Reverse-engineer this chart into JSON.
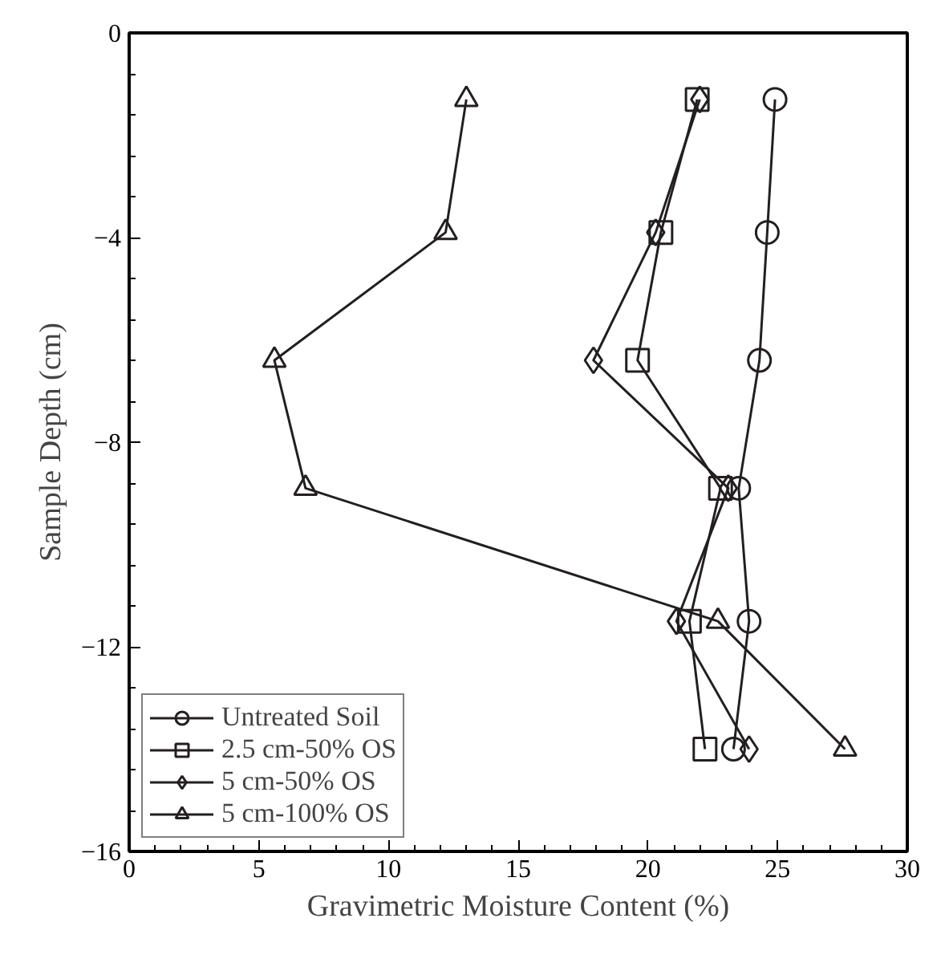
{
  "chart_data": {
    "type": "line",
    "xlabel": "Gravimetric Moisture Content (%)",
    "ylabel": "Sample Depth (cm)",
    "xlim": [
      0,
      30
    ],
    "xticks": [
      0,
      5,
      10,
      15,
      20,
      25,
      30
    ],
    "ylim": [
      -16,
      0
    ],
    "yticks": [
      -16,
      -12,
      -8,
      -4,
      0
    ],
    "grid": false,
    "legend": "bottom left",
    "line_style": "solid",
    "series": [
      {
        "name": "Untreated Soil",
        "color": "#231f20",
        "marker": "circle",
        "x": [
          24.9,
          24.6,
          24.3,
          23.5,
          23.9,
          23.3
        ],
        "values": [
          -1.3,
          -3.9,
          -6.4,
          -8.9,
          -11.5,
          -14.0
        ]
      },
      {
        "name": "2.5 cm-50% OS",
        "color": "#231f20",
        "marker": "square",
        "x": [
          21.9,
          20.5,
          19.6,
          22.8,
          21.6,
          22.2
        ],
        "values": [
          -1.3,
          -3.9,
          -6.4,
          -8.9,
          -11.5,
          -14.0
        ]
      },
      {
        "name": "5 cm-50% OS",
        "color": "#231f20",
        "marker": "diamond",
        "x": [
          22.0,
          20.3,
          17.9,
          23.1,
          21.1,
          23.9
        ],
        "values": [
          -1.3,
          -3.9,
          -6.4,
          -8.9,
          -11.5,
          -14.0
        ]
      },
      {
        "name": "5 cm-100% OS",
        "color": "#231f20",
        "marker": "triangle",
        "x": [
          13.0,
          12.2,
          5.6,
          6.8,
          22.7,
          27.6
        ],
        "values": [
          -1.3,
          -3.9,
          -6.4,
          -8.9,
          -11.5,
          -14.0
        ]
      }
    ]
  }
}
